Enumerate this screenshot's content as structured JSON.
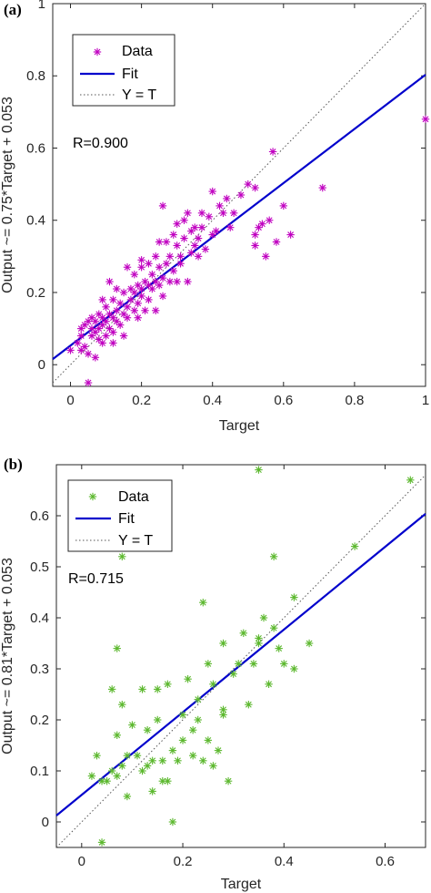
{
  "chart_data": [
    {
      "panel_label": "(a)",
      "type": "scatter",
      "xlabel": "Target",
      "ylabel": "Output ~= 0.75*Target + 0.053",
      "xlim": [
        -0.05,
        1.0
      ],
      "ylim": [
        -0.06,
        1.0
      ],
      "xticks": [
        "0",
        "0.2",
        "0.4",
        "0.6",
        "0.8",
        "1"
      ],
      "xtick_values": [
        0,
        0.2,
        0.4,
        0.6,
        0.8,
        1.0
      ],
      "yticks": [
        "0",
        "0.2",
        "0.4",
        "0.6",
        "0.8",
        "1"
      ],
      "ytick_values": [
        0,
        0.2,
        0.4,
        0.6,
        0.8,
        1.0
      ],
      "r_text": "R=0.900",
      "fit": {
        "slope": 0.75,
        "intercept": 0.053
      },
      "legend": {
        "position": "top-left",
        "entries": [
          "Data",
          "Fit",
          "Y = T"
        ]
      },
      "colors": {
        "data": "#c000c0",
        "fit": "#0000cc",
        "identity": "#555555"
      },
      "series": [
        {
          "name": "Data",
          "marker": "asterisk",
          "points": [
            [
              0.0,
              0.04
            ],
            [
              0.02,
              0.06
            ],
            [
              0.03,
              0.08
            ],
            [
              0.03,
              0.1
            ],
            [
              0.04,
              0.05
            ],
            [
              0.04,
              0.11
            ],
            [
              0.05,
              0.03
            ],
            [
              0.05,
              0.12
            ],
            [
              0.06,
              0.08
            ],
            [
              0.06,
              0.1
            ],
            [
              0.06,
              0.13
            ],
            [
              0.05,
              -0.05
            ],
            [
              0.07,
              0.02
            ],
            [
              0.07,
              0.09
            ],
            [
              0.07,
              0.12
            ],
            [
              0.08,
              0.07
            ],
            [
              0.08,
              0.1
            ],
            [
              0.08,
              0.14
            ],
            [
              0.09,
              0.06
            ],
            [
              0.09,
              0.11
            ],
            [
              0.09,
              0.13
            ],
            [
              0.1,
              0.08
            ],
            [
              0.1,
              0.12
            ],
            [
              0.1,
              0.16
            ],
            [
              0.11,
              0.1
            ],
            [
              0.11,
              0.14
            ],
            [
              0.12,
              0.09
            ],
            [
              0.12,
              0.13
            ],
            [
              0.12,
              0.18
            ],
            [
              0.13,
              0.12
            ],
            [
              0.13,
              0.15
            ],
            [
              0.14,
              0.11
            ],
            [
              0.14,
              0.17
            ],
            [
              0.15,
              0.14
            ],
            [
              0.15,
              0.2
            ],
            [
              0.16,
              0.13
            ],
            [
              0.16,
              0.16
            ],
            [
              0.17,
              0.18
            ],
            [
              0.17,
              0.21
            ],
            [
              0.18,
              0.15
            ],
            [
              0.18,
              0.2
            ],
            [
              0.18,
              0.25
            ],
            [
              0.19,
              0.17
            ],
            [
              0.19,
              0.22
            ],
            [
              0.2,
              0.19
            ],
            [
              0.2,
              0.21
            ],
            [
              0.2,
              0.27
            ],
            [
              0.21,
              0.15
            ],
            [
              0.21,
              0.23
            ],
            [
              0.22,
              0.18
            ],
            [
              0.22,
              0.22
            ],
            [
              0.22,
              0.28
            ],
            [
              0.23,
              0.21
            ],
            [
              0.23,
              0.25
            ],
            [
              0.24,
              0.23
            ],
            [
              0.24,
              0.3
            ],
            [
              0.25,
              0.22
            ],
            [
              0.25,
              0.27
            ],
            [
              0.25,
              0.34
            ],
            [
              0.26,
              0.19
            ],
            [
              0.26,
              0.24
            ],
            [
              0.26,
              0.44
            ],
            [
              0.27,
              0.28
            ],
            [
              0.27,
              0.34
            ],
            [
              0.28,
              0.23
            ],
            [
              0.28,
              0.3
            ],
            [
              0.29,
              0.36
            ],
            [
              0.29,
              0.26
            ],
            [
              0.3,
              0.33
            ],
            [
              0.3,
              0.39
            ],
            [
              0.31,
              0.28
            ],
            [
              0.31,
              0.3
            ],
            [
              0.32,
              0.35
            ],
            [
              0.32,
              0.4
            ],
            [
              0.33,
              0.23
            ],
            [
              0.33,
              0.42
            ],
            [
              0.34,
              0.31
            ],
            [
              0.34,
              0.37
            ],
            [
              0.35,
              0.33
            ],
            [
              0.35,
              0.38
            ],
            [
              0.36,
              0.35
            ],
            [
              0.36,
              0.3
            ],
            [
              0.37,
              0.38
            ],
            [
              0.37,
              0.42
            ],
            [
              0.38,
              0.32
            ],
            [
              0.39,
              0.41
            ],
            [
              0.4,
              0.36
            ],
            [
              0.4,
              0.48
            ],
            [
              0.41,
              0.37
            ],
            [
              0.42,
              0.44
            ],
            [
              0.43,
              0.42
            ],
            [
              0.44,
              0.46
            ],
            [
              0.45,
              0.38
            ],
            [
              0.46,
              0.42
            ],
            [
              0.48,
              0.47
            ],
            [
              0.5,
              0.5
            ],
            [
              0.52,
              0.33
            ],
            [
              0.52,
              0.36
            ],
            [
              0.53,
              0.38
            ],
            [
              0.54,
              0.39
            ],
            [
              0.55,
              0.3
            ],
            [
              0.56,
              0.4
            ],
            [
              0.57,
              0.59
            ],
            [
              0.58,
              0.34
            ],
            [
              0.6,
              0.44
            ],
            [
              0.62,
              0.36
            ],
            [
              0.52,
              0.49
            ],
            [
              0.71,
              0.49
            ],
            [
              1.0,
              0.68
            ],
            [
              0.12,
              0.06
            ],
            [
              0.15,
              0.08
            ],
            [
              0.19,
              0.13
            ],
            [
              0.24,
              0.15
            ],
            [
              0.3,
              0.23
            ],
            [
              0.16,
              0.27
            ],
            [
              0.13,
              0.21
            ],
            [
              0.09,
              0.18
            ],
            [
              0.11,
              0.23
            ],
            [
              0.2,
              0.29
            ],
            [
              0.03,
              0.04
            ]
          ]
        }
      ]
    },
    {
      "panel_label": "(b)",
      "type": "scatter",
      "xlabel": "Target",
      "ylabel": "Output ~= 0.81*Target + 0.053",
      "xlim": [
        -0.05,
        0.68
      ],
      "ylim": [
        -0.05,
        0.7
      ],
      "xticks": [
        "0",
        "0.2",
        "0.4",
        "0.6"
      ],
      "xtick_values": [
        0,
        0.2,
        0.4,
        0.6
      ],
      "yticks": [
        "0",
        "0.1",
        "0.2",
        "0.3",
        "0.4",
        "0.5",
        "0.6"
      ],
      "ytick_values": [
        0,
        0.1,
        0.2,
        0.3,
        0.4,
        0.5,
        0.6
      ],
      "r_text": "R=0.715",
      "fit": {
        "slope": 0.81,
        "intercept": 0.053
      },
      "legend": {
        "position": "top-left",
        "entries": [
          "Data",
          "Fit",
          "Y = T"
        ]
      },
      "colors": {
        "data": "#5cb82e",
        "fit": "#0000cc",
        "identity": "#555555"
      },
      "series": [
        {
          "name": "Data",
          "marker": "asterisk",
          "points": [
            [
              0.02,
              0.09
            ],
            [
              0.03,
              0.13
            ],
            [
              0.04,
              0.08
            ],
            [
              0.04,
              -0.04
            ],
            [
              0.05,
              0.08
            ],
            [
              0.06,
              0.26
            ],
            [
              0.06,
              0.1
            ],
            [
              0.07,
              0.34
            ],
            [
              0.07,
              0.17
            ],
            [
              0.07,
              0.09
            ],
            [
              0.08,
              0.23
            ],
            [
              0.08,
              0.11
            ],
            [
              0.09,
              0.13
            ],
            [
              0.09,
              0.05
            ],
            [
              0.1,
              0.19
            ],
            [
              0.11,
              0.13
            ],
            [
              0.12,
              0.26
            ],
            [
              0.12,
              0.1
            ],
            [
              0.13,
              0.18
            ],
            [
              0.13,
              0.11
            ],
            [
              0.14,
              0.06
            ],
            [
              0.14,
              0.12
            ],
            [
              0.15,
              0.2
            ],
            [
              0.15,
              0.26
            ],
            [
              0.16,
              0.12
            ],
            [
              0.16,
              0.08
            ],
            [
              0.17,
              0.08
            ],
            [
              0.17,
              0.27
            ],
            [
              0.18,
              0.0
            ],
            [
              0.18,
              0.14
            ],
            [
              0.19,
              0.12
            ],
            [
              0.2,
              0.21
            ],
            [
              0.2,
              0.16
            ],
            [
              0.21,
              0.28
            ],
            [
              0.22,
              0.13
            ],
            [
              0.22,
              0.18
            ],
            [
              0.23,
              0.2
            ],
            [
              0.23,
              0.24
            ],
            [
              0.24,
              0.43
            ],
            [
              0.24,
              0.12
            ],
            [
              0.25,
              0.31
            ],
            [
              0.25,
              0.16
            ],
            [
              0.26,
              0.27
            ],
            [
              0.26,
              0.11
            ],
            [
              0.27,
              0.14
            ],
            [
              0.28,
              0.21
            ],
            [
              0.28,
              0.22
            ],
            [
              0.28,
              0.35
            ],
            [
              0.29,
              0.08
            ],
            [
              0.3,
              0.29
            ],
            [
              0.31,
              0.31
            ],
            [
              0.32,
              0.37
            ],
            [
              0.33,
              0.23
            ],
            [
              0.34,
              0.31
            ],
            [
              0.35,
              0.35
            ],
            [
              0.35,
              0.36
            ],
            [
              0.36,
              0.4
            ],
            [
              0.37,
              0.27
            ],
            [
              0.38,
              0.38
            ],
            [
              0.38,
              0.52
            ],
            [
              0.39,
              0.34
            ],
            [
              0.4,
              0.31
            ],
            [
              0.42,
              0.44
            ],
            [
              0.42,
              0.3
            ],
            [
              0.45,
              0.35
            ],
            [
              0.54,
              0.54
            ],
            [
              0.35,
              0.69
            ],
            [
              0.65,
              0.67
            ],
            [
              0.08,
              0.52
            ]
          ]
        }
      ]
    }
  ]
}
